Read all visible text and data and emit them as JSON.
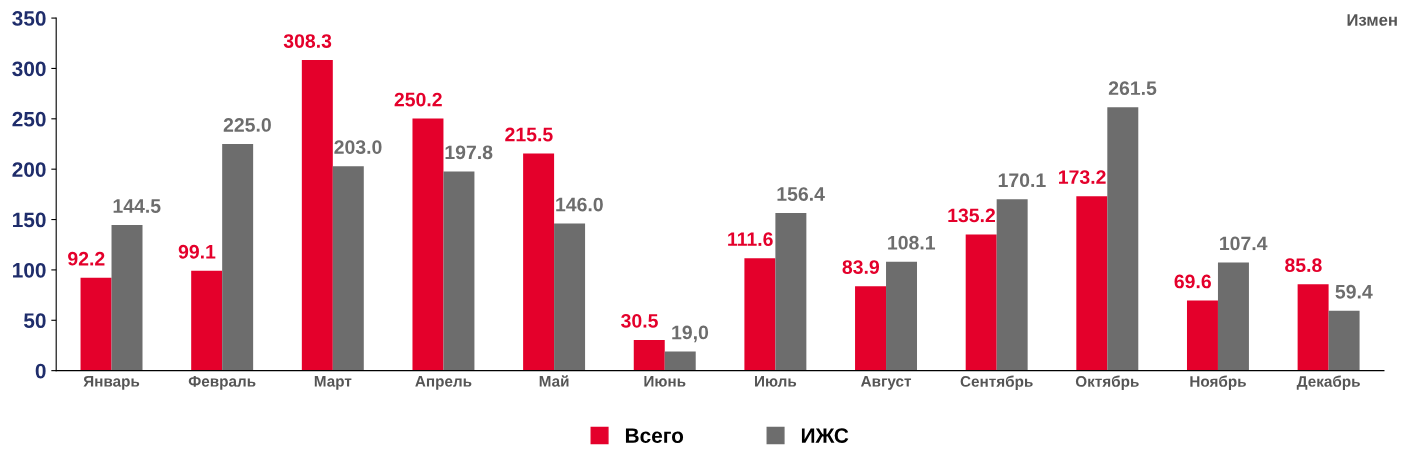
{
  "chart_data": {
    "type": "bar",
    "categories": [
      "Январь",
      "Февраль",
      "Март",
      "Апрель",
      "Май",
      "Июнь",
      "Июль",
      "Август",
      "Сентябрь",
      "Октябрь",
      "Ноябрь",
      "Декабрь"
    ],
    "series": [
      {
        "name": "Всего",
        "color": "#e4002b",
        "values": [
          92.2,
          99.1,
          308.3,
          250.2,
          215.5,
          30.5,
          111.6,
          83.9,
          135.2,
          173.2,
          69.6,
          85.8
        ],
        "value_labels": [
          "92.2",
          "99.1",
          "308.3",
          "250.2",
          "215.5",
          "30.5",
          "111.6",
          "83.9",
          "135.2",
          "173.2",
          "69.6",
          "85.8"
        ]
      },
      {
        "name": "ИЖС",
        "color": "#6d6d6d",
        "values": [
          144.5,
          225.0,
          203.0,
          197.8,
          146.0,
          19.0,
          156.4,
          108.1,
          170.1,
          261.5,
          107.4,
          59.4
        ],
        "value_labels": [
          "144.5",
          "225.0",
          "203.0",
          "197.8",
          "146.0",
          "19,0",
          "156.4",
          "108.1",
          "170.1",
          "261.5",
          "107.4",
          "59.4"
        ]
      }
    ],
    "ylim": [
      0,
      350
    ],
    "yticks": [
      0,
      50,
      100,
      150,
      200,
      250,
      300,
      350
    ],
    "grid": false,
    "legend": "bottom",
    "annotations": [
      "Измен"
    ]
  }
}
